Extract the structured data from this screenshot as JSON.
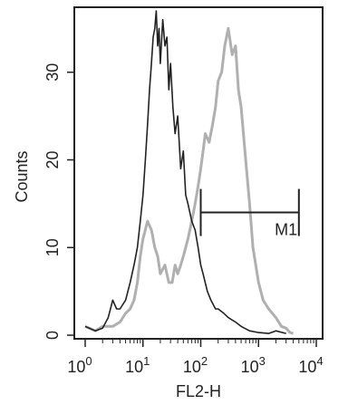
{
  "chart_data": {
    "type": "line",
    "xlabel": "FL2-H",
    "ylabel": "Counts",
    "xscale": "log",
    "xlim": [
      1,
      10000
    ],
    "ylim": [
      0,
      37
    ],
    "grid": false,
    "legend": "none",
    "x_ticks": [
      {
        "value": 1,
        "base": "10",
        "exp": "0"
      },
      {
        "value": 10,
        "base": "10",
        "exp": "1"
      },
      {
        "value": 100,
        "base": "10",
        "exp": "2"
      },
      {
        "value": 1000,
        "base": "10",
        "exp": "3"
      },
      {
        "value": 10000,
        "base": "10",
        "exp": "4"
      }
    ],
    "y_ticks": [
      {
        "value": 0,
        "label": "0"
      },
      {
        "value": 10,
        "label": "10"
      },
      {
        "value": 20,
        "label": "20"
      },
      {
        "value": 30,
        "label": "30"
      }
    ],
    "series": [
      {
        "color": "#222222",
        "style": "solid",
        "x": [
          1,
          1.5,
          2,
          2.5,
          3,
          3.5,
          4,
          5,
          6,
          7,
          8,
          9,
          10,
          11,
          12,
          13,
          14,
          15,
          16,
          17,
          18,
          19,
          20,
          22,
          24,
          26,
          28,
          30,
          33,
          36,
          40,
          45,
          50,
          55,
          60,
          70,
          80,
          90,
          100,
          110,
          130,
          150,
          180,
          200,
          250,
          300,
          400,
          500,
          700,
          1000,
          1500,
          2000,
          3000
        ],
        "y": [
          1,
          0.5,
          0.8,
          2,
          4,
          3,
          3,
          4,
          6,
          8,
          10,
          13,
          16,
          20,
          24,
          28,
          31,
          34,
          35,
          37,
          33,
          35,
          31,
          36,
          33,
          34,
          28,
          31,
          26,
          23,
          25,
          19,
          21,
          16,
          15,
          13,
          12,
          10,
          8,
          7,
          5,
          4,
          3,
          3,
          2.5,
          2,
          1.5,
          1,
          0.5,
          0.3,
          0.2,
          0.5,
          0.2
        ]
      },
      {
        "color": "#b0b0b0",
        "style": "solid",
        "x": [
          1,
          1.5,
          2,
          3,
          4,
          5,
          6,
          7,
          8,
          9,
          10,
          12,
          14,
          16,
          18,
          20,
          24,
          28,
          32,
          36,
          40,
          45,
          50,
          55,
          60,
          70,
          80,
          90,
          100,
          110,
          120,
          140,
          160,
          180,
          200,
          230,
          260,
          300,
          350,
          400,
          450,
          500,
          600,
          700,
          800,
          1000,
          1200,
          1500,
          2000,
          2500,
          3000,
          3500,
          4000
        ],
        "y": [
          1,
          0.5,
          1,
          1,
          1.5,
          2.5,
          3,
          4,
          6,
          9,
          11,
          13,
          12,
          10,
          9,
          7,
          8,
          6,
          6,
          8,
          7,
          8,
          9,
          10,
          11,
          13,
          15,
          17,
          19,
          21,
          23,
          22,
          24,
          26,
          29,
          30,
          33,
          35,
          32,
          33,
          28,
          26,
          20,
          15,
          10,
          6,
          4,
          3,
          2,
          1,
          0.8,
          0.3,
          0.2
        ]
      }
    ],
    "gate": {
      "label": "M1",
      "x_start": 100,
      "x_end": 5000,
      "y": 14
    }
  }
}
